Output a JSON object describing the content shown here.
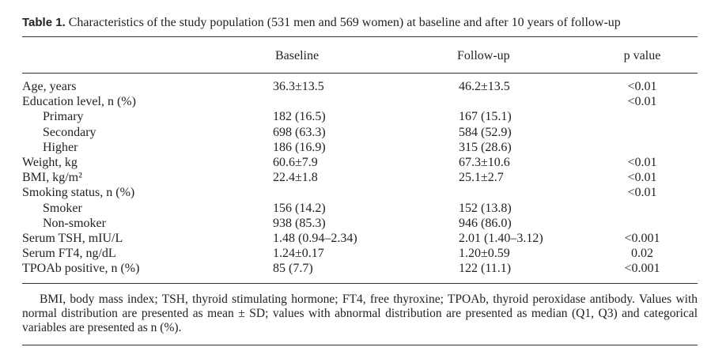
{
  "title": {
    "label": "Table 1.",
    "text": "Characteristics of the study population (531 men and 569 women) at baseline and after 10 years of follow-up"
  },
  "table": {
    "headers": [
      "Baseline",
      "Follow-up",
      "p value"
    ],
    "rows": [
      {
        "label": "Age, years",
        "cells": [
          "36.3±13.5",
          "46.2±13.5",
          "<0.01"
        ]
      },
      {
        "label": "Education level, n (%)",
        "cells": [
          null,
          null,
          "<0.01"
        ]
      },
      {
        "label": "Primary",
        "indent": true,
        "cells": [
          "182 (16.5)",
          "167 (15.1)",
          null
        ]
      },
      {
        "label": "Secondary",
        "indent": true,
        "cells": [
          "698 (63.3)",
          "584 (52.9)",
          null
        ]
      },
      {
        "label": "Higher",
        "indent": true,
        "cells": [
          "186 (16.9)",
          "315 (28.6)",
          null
        ]
      },
      {
        "label": "Weight, kg",
        "cells": [
          "60.6±7.9",
          "67.3±10.6",
          "<0.01"
        ]
      },
      {
        "label": "BMI, kg/m²",
        "cells": [
          "22.4±1.8",
          "25.1±2.7",
          "<0.01"
        ]
      },
      {
        "label": "Smoking status, n (%)",
        "cells": [
          null,
          null,
          "<0.01"
        ]
      },
      {
        "label": "Smoker",
        "indent": true,
        "cells": [
          "156 (14.2)",
          "152 (13.8)",
          null
        ]
      },
      {
        "label": "Non-smoker",
        "indent": true,
        "cells": [
          "938 (85.3)",
          "946 (86.0)",
          null
        ]
      },
      {
        "label": "Serum TSH, mIU/L",
        "cells": [
          "1.48 (0.94–2.34)",
          "2.01 (1.40–3.12)",
          "<0.001"
        ]
      },
      {
        "label": "Serum FT4, ng/dL",
        "cells": [
          "1.24±0.17",
          "1.20±0.59",
          "0.02"
        ]
      },
      {
        "label": "TPOAb positive, n (%)",
        "cells": [
          "85 (7.7)",
          "122 (11.1)",
          "<0.001"
        ]
      }
    ]
  },
  "footnote": "BMI, body mass index; TSH, thyroid stimulating hormone; FT4, free thyroxine; TPOAb, thyroid peroxidase antibody. Values with normal distribution are presented as mean ± SD; values with abnormal distribution are presented as median (Q1, Q3) and categorical variables are presented as n (%)."
}
